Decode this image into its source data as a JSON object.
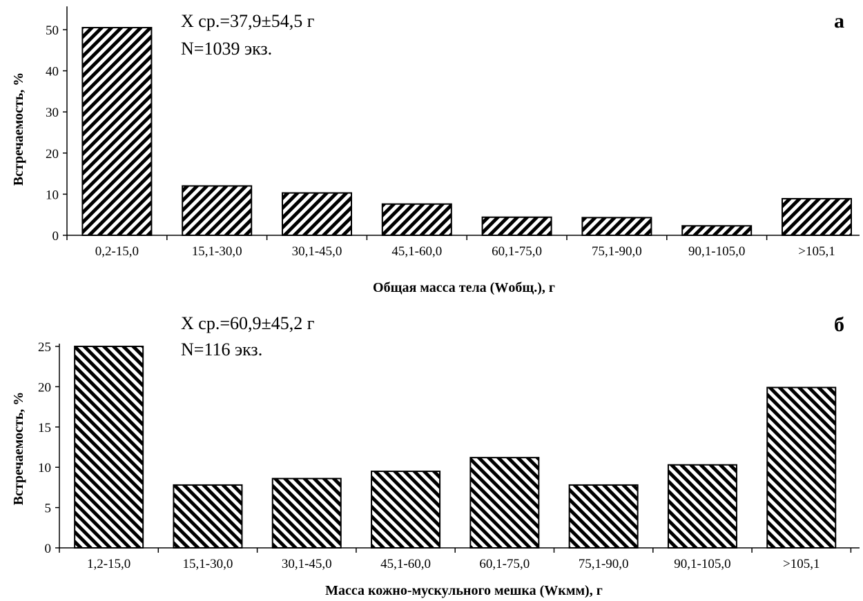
{
  "chart_data": [
    {
      "type": "bar",
      "panel_letter": "а",
      "stats_line1": "X ср.=37,9±54,5 г",
      "stats_line2": "N=1039 экз.",
      "title": "",
      "xlabel": "Общая масса тела (Wобщ.), г",
      "ylabel": "Встречаемость, %",
      "ylim": [
        0,
        55
      ],
      "yticks": [
        0,
        10,
        20,
        30,
        40,
        50
      ],
      "categories": [
        "0,2-15,0",
        "15,1-30,0",
        "30,1-45,0",
        "45,1-60,0",
        "60,1-75,0",
        "75,1-90,0",
        "90,1-105,0",
        ">105,1"
      ],
      "values": [
        50.5,
        12.0,
        10.3,
        7.6,
        4.4,
        4.3,
        2.3,
        8.9
      ],
      "hatch": "backslash",
      "bar_color": "#000000"
    },
    {
      "type": "bar",
      "panel_letter": "б",
      "stats_line1": "X ср.=60,9±45,2 г",
      "stats_line2": "N=116 экз.",
      "title": "",
      "xlabel": "Масса кожно-мускульного мешка (Wкмм), г",
      "ylabel": "Встречаемость, %",
      "ylim": [
        0,
        25
      ],
      "yticks": [
        0,
        5,
        10,
        15,
        20,
        25
      ],
      "categories": [
        "1,2-15,0",
        "15,1-30,0",
        "30,1-45,0",
        "45,1-60,0",
        "60,1-75,0",
        "75,1-90,0",
        "90,1-105,0",
        ">105,1"
      ],
      "values": [
        25.0,
        7.8,
        8.6,
        9.5,
        11.2,
        7.8,
        10.3,
        19.9
      ],
      "hatch": "slash",
      "bar_color": "#000000"
    }
  ]
}
